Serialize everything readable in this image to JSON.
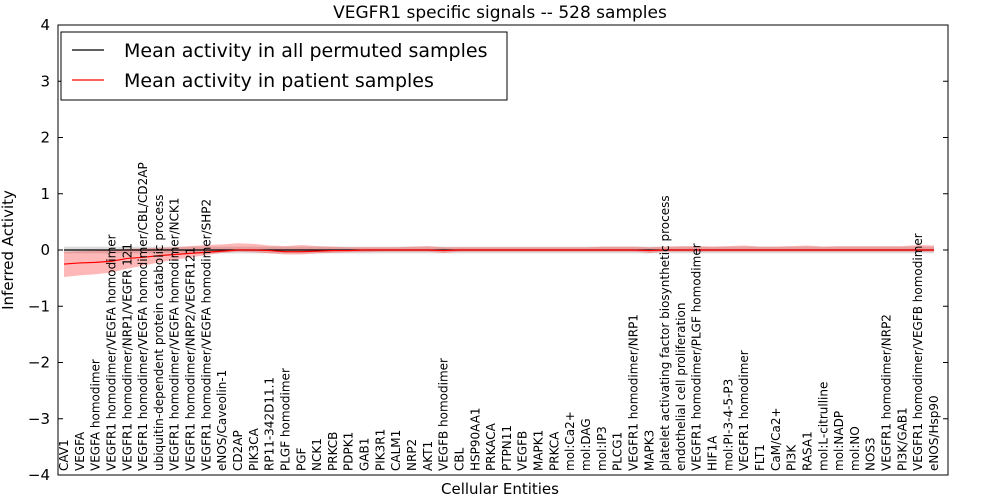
{
  "chart_data": {
    "type": "line",
    "title": "VEGFR1 specific signals -- 528 samples",
    "xlabel": "Cellular Entities",
    "ylabel": "Inferred Activity",
    "ylim": [
      -4,
      4
    ],
    "yticks": [
      -4,
      -3,
      -2,
      -1,
      0,
      1,
      2,
      3,
      4
    ],
    "ytick_labels": [
      "−4",
      "−3",
      "−2",
      "−1",
      "0",
      "1",
      "2",
      "3",
      "4"
    ],
    "legend_position": "top-left",
    "categories": [
      "CAV1",
      "VEGFA",
      "VEGFA homodimer",
      "VEGFR1 homodimer/VEGFA homodimer",
      "VEGFR1 homodimer/NRP1/VEGFR 121",
      "VEGFR1 homodimer/VEGFA homodimer/CBL/CD2AP",
      "ubiquitin-dependent protein catabolic process",
      "VEGFR1 homodimer/VEGFA homodimer/NCK1",
      "VEGFR1 homodimer/NRP2/VEGFR121",
      "VEGFR1 homodimer/VEGFA homodimer/SHP2",
      "eNOS/Caveolin-1",
      "CD2AP",
      "PIK3CA",
      "RP11-342D11.1",
      "PLGF homodimer",
      "PGF",
      "NCK1",
      "PRKCB",
      "PDPK1",
      "GAB1",
      "PIK3R1",
      "CALM1",
      "NRP2",
      "AKT1",
      "VEGFB homodimer",
      "CBL",
      "HSP90AA1",
      "PRKACA",
      "PTPN11",
      "VEGFB",
      "MAPK1",
      "PRKCA",
      "mol:Ca2+",
      "mol:DAG",
      "mol:IP3",
      "PLCG1",
      "VEGFR1 homodimer/NRP1",
      "MAPK3",
      "platelet activating factor biosynthetic process",
      "endothelial cell proliferation",
      "VEGFR1 homodimer/PLGF homodimer",
      "HIF1A",
      "mol:PI-3-4-5-P3",
      "VEGFR1 homodimer",
      "FLT1",
      "CaM/Ca2+",
      "PI3K",
      "RASA1",
      "mol:L-citrulline",
      "mol:NADP",
      "mol:NO",
      "NOS3",
      "VEGFR1 homodimer/NRP2",
      "PI3K/GAB1",
      "VEGFR1 homodimer/VEGFB homodimer",
      "eNOS/Hsp90"
    ],
    "series": [
      {
        "name": "Mean activity in all permuted samples",
        "color": "#000000",
        "band_color": "#aaaaaa",
        "values": [
          0,
          0,
          0,
          0,
          0,
          0,
          0,
          0,
          0,
          0,
          0,
          0,
          0,
          0,
          0,
          0,
          0,
          0,
          0,
          0,
          0,
          0,
          0,
          0,
          0,
          0,
          0,
          0,
          0,
          0,
          0,
          0,
          0,
          0,
          0,
          0,
          0,
          0,
          0,
          0,
          0,
          0,
          0,
          0,
          0,
          0,
          0,
          0,
          0,
          0,
          0,
          0,
          0,
          0,
          0,
          0
        ],
        "band": 0.06
      },
      {
        "name": "Mean activity in patient samples",
        "color": "#ff0000",
        "band_color": "#ff0000",
        "values": [
          -0.25,
          -0.23,
          -0.22,
          -0.2,
          -0.15,
          -0.13,
          -0.1,
          -0.08,
          -0.06,
          -0.04,
          -0.02,
          0.0,
          0.0,
          -0.01,
          -0.03,
          -0.03,
          -0.02,
          -0.01,
          -0.01,
          0.0,
          0.0,
          0.0,
          0.0,
          0.0,
          -0.01,
          0.0,
          0.0,
          0.0,
          0.0,
          0.0,
          0.0,
          0.0,
          0.0,
          0.0,
          0.0,
          0.0,
          0.0,
          -0.01,
          0.0,
          0.0,
          0.0,
          0.0,
          0.0,
          0.0,
          0.0,
          0.0,
          0.0,
          0.0,
          0.0,
          0.0,
          0.0,
          0.0,
          0.0,
          0.0,
          0.0,
          0.0
        ],
        "band_lower": [
          -0.48,
          -0.45,
          -0.43,
          -0.4,
          -0.33,
          -0.28,
          -0.22,
          -0.17,
          -0.13,
          -0.09,
          -0.05,
          -0.03,
          -0.04,
          -0.06,
          -0.08,
          -0.08,
          -0.06,
          -0.05,
          -0.04,
          -0.04,
          -0.03,
          -0.03,
          -0.03,
          -0.03,
          -0.05,
          -0.03,
          -0.03,
          -0.03,
          -0.03,
          -0.03,
          -0.03,
          -0.03,
          -0.03,
          -0.03,
          -0.03,
          -0.03,
          -0.03,
          -0.05,
          -0.03,
          -0.03,
          -0.03,
          -0.03,
          -0.03,
          -0.03,
          -0.03,
          -0.03,
          -0.03,
          -0.03,
          -0.03,
          -0.03,
          -0.03,
          -0.03,
          -0.03,
          -0.03,
          -0.03,
          -0.03
        ],
        "band_upper": [
          -0.03,
          -0.02,
          -0.01,
          0.0,
          0.02,
          0.03,
          0.04,
          0.05,
          0.07,
          0.09,
          0.1,
          0.12,
          0.11,
          0.08,
          0.07,
          0.09,
          0.07,
          0.06,
          0.05,
          0.05,
          0.05,
          0.05,
          0.06,
          0.07,
          0.05,
          0.05,
          0.05,
          0.05,
          0.05,
          0.05,
          0.05,
          0.05,
          0.05,
          0.05,
          0.06,
          0.06,
          0.06,
          0.05,
          0.06,
          0.07,
          0.07,
          0.06,
          0.07,
          0.08,
          0.06,
          0.06,
          0.07,
          0.08,
          0.06,
          0.07,
          0.07,
          0.07,
          0.07,
          0.07,
          0.09,
          0.08
        ]
      }
    ]
  }
}
